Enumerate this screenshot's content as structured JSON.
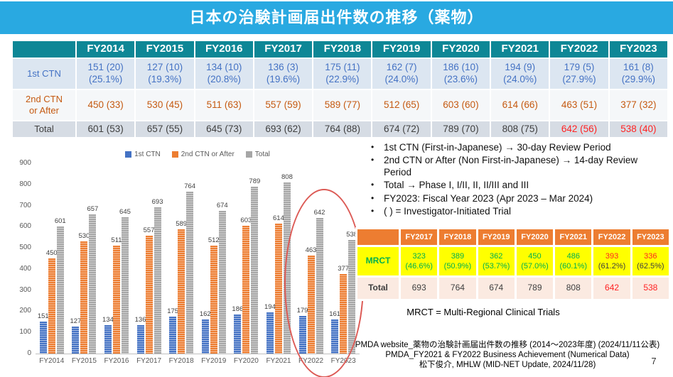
{
  "title": "日本の治験計画届出件数の推移（薬物）",
  "colors": {
    "title_bar": "#29A9E1",
    "table_header_teal": "#0E8796",
    "blue": "#4472C4",
    "orange": "#ED7D31",
    "dark_orange_text": "#C55A11",
    "gray": "#A6A6A6",
    "red": "#FF2222",
    "green": "#00B050",
    "yellow": "#FFFF00",
    "dark_text": "#3F3F3F"
  },
  "main_table": {
    "corner": "",
    "years": [
      "FY2014",
      "FY2015",
      "FY2016",
      "FY2017",
      "FY2018",
      "FY2019",
      "FY2020",
      "FY2021",
      "FY2022",
      "FY2023"
    ],
    "rows": [
      {
        "label": "1st CTN",
        "text_color": "#4472C4",
        "values": [
          "151 (20)",
          "127 (10)",
          "134 (10)",
          "136 (3)",
          "175 (11)",
          "162 (7)",
          "186 (10)",
          "194 (9)",
          "179 (5)",
          "161 (8)"
        ],
        "sub": [
          "(25.1%)",
          "(19.3%)",
          "(20.8%)",
          "(19.6%)",
          "(22.9%)",
          "(24.0%)",
          "(23.6%)",
          "(24.0%)",
          "(27.9%)",
          "(29.9%)"
        ],
        "red_indices": []
      },
      {
        "label": "2nd CTN or After",
        "text_color": "#C55A11",
        "values": [
          "450 (33)",
          "530 (45)",
          "511 (63)",
          "557 (59)",
          "589 (77)",
          "512 (65)",
          "603 (60)",
          "614 (66)",
          "463 (51)",
          "377 (32)"
        ],
        "red_indices": []
      },
      {
        "label": "Total",
        "text_color": "#3F3F3F",
        "values": [
          "601 (53)",
          "657 (55)",
          "645 (73)",
          "693 (62)",
          "764 (88)",
          "674 (72)",
          "789 (70)",
          "808 (75)",
          "642 (56)",
          "538 (40)"
        ],
        "red_indices": [
          8,
          9
        ]
      }
    ]
  },
  "chart_data": {
    "type": "bar",
    "categories": [
      "FY2014",
      "FY2015",
      "FY2016",
      "FY2017",
      "FY2018",
      "FY2019",
      "FY2020",
      "FY2021",
      "FY2022",
      "FY2023"
    ],
    "series": [
      {
        "name": "1st CTN",
        "color": "#4472C4",
        "values": [
          151,
          127,
          134,
          136,
          175,
          162,
          186,
          194,
          179,
          161
        ]
      },
      {
        "name": "2nd CTN or After",
        "color": "#ED7D31",
        "values": [
          450,
          530,
          511,
          557,
          589,
          512,
          603,
          614,
          463,
          377
        ]
      },
      {
        "name": "Total",
        "color": "#A6A6A6",
        "values": [
          601,
          657,
          645,
          693,
          764,
          674,
          789,
          808,
          642,
          538
        ]
      }
    ],
    "title": "",
    "xlabel": "",
    "ylabel": "",
    "ylim": [
      0,
      900
    ],
    "ytick_step": 100,
    "grid": false,
    "legend_position": "top",
    "annotation": "red ellipse highlighting FY2022 and FY2023 bars"
  },
  "bullets": [
    "1st CTN (First-in-Japanese) → 30-day Review Period",
    "2nd CTN or After (Non First-in-Japanese) → 14-day Review Period",
    "Total → Phase I, I/II, II, II/III and III",
    "FY2023: Fiscal Year 2023 (Apr 2023 – Mar 2024)",
    "( ) = Investigator-Initiated Trial"
  ],
  "mrct_table": {
    "corner": "",
    "years": [
      "FY2017",
      "FY2018",
      "FY2019",
      "FY2020",
      "FY2021",
      "FY2022",
      "FY2023"
    ],
    "rows": [
      {
        "label": "MRCT",
        "label_color": "#00B050",
        "text_color": "#00B050",
        "values": [
          "323",
          "389",
          "362",
          "450",
          "486",
          "393",
          "336"
        ],
        "sub": [
          "(46.6%)",
          "(50.9%)",
          "(53.7%)",
          "(57.0%)",
          "(60.1%)",
          "(61.2%)",
          "(62.5%)"
        ],
        "red_indices": [
          5,
          6
        ],
        "sub_dark_indices": [
          5,
          6
        ]
      },
      {
        "label": "Total",
        "label_color": "#3F3F3F",
        "text_color": "#3F3F3F",
        "values": [
          "693",
          "764",
          "674",
          "789",
          "808",
          "642",
          "538"
        ],
        "red_indices": [
          5,
          6
        ]
      }
    ]
  },
  "mrct_note": "MRCT = Multi-Regional Clinical Trials",
  "footer": {
    "lines": [
      "PMDA website_薬物の治験計画届出件数の推移 (2014～2023年度) (2024/11/11公表)",
      "PMDA_FY2021 & FY2022 Business Achievement (Numerical Data)",
      "松下俊介, MHLW (MID-NET Update, 2024/11/28)"
    ],
    "page": "7"
  }
}
